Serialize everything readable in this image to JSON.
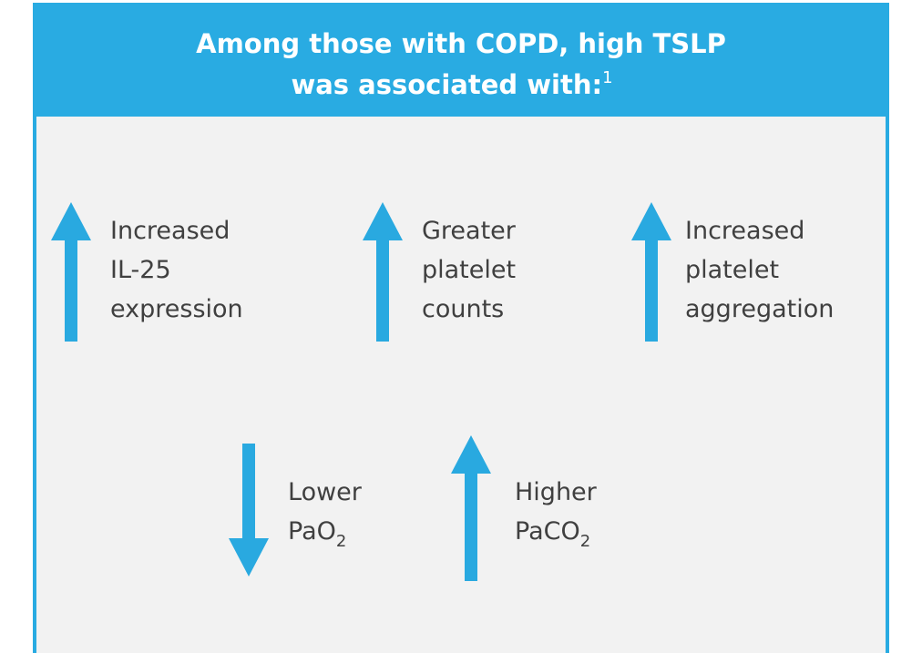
{
  "header": {
    "title_line1": "Among those with COPD, high TSLP",
    "title_line2": "was associated with:",
    "footnote": "1"
  },
  "items": [
    {
      "direction": "up",
      "lines": [
        {
          "text": "Increased"
        },
        {
          "text": "IL-25"
        },
        {
          "text": "expression"
        }
      ]
    },
    {
      "direction": "up",
      "lines": [
        {
          "text": "Greater"
        },
        {
          "text": "platelet"
        },
        {
          "text": "counts"
        }
      ]
    },
    {
      "direction": "up",
      "lines": [
        {
          "text": "Increased"
        },
        {
          "text": "platelet"
        },
        {
          "text": "aggregation"
        }
      ]
    },
    {
      "direction": "down",
      "lines": [
        {
          "text": "Lower"
        },
        {
          "text": "PaO",
          "sub": "2"
        }
      ]
    },
    {
      "direction": "up",
      "lines": [
        {
          "text": "Higher"
        },
        {
          "text": "PaCO",
          "sub": "2"
        }
      ]
    }
  ]
}
